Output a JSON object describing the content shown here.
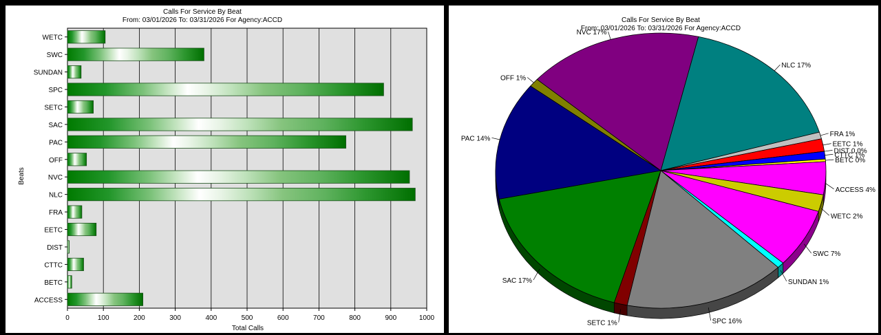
{
  "chart_data": [
    {
      "type": "bar",
      "title": "Calls For Service By Beat",
      "subtitle": "From: 03/01/2026   To: 03/31/2026 For Agency:ACCD",
      "xlabel": "Total Calls",
      "ylabel": "Beats",
      "xlim": [
        0,
        1000
      ],
      "xticks": [
        "0",
        "100",
        "200",
        "300",
        "400",
        "500",
        "600",
        "700",
        "800",
        "900",
        "1000"
      ],
      "grid": true,
      "categories": [
        "WETC",
        "SWC",
        "SUNDAN",
        "SPC",
        "SETC",
        "SAC",
        "PAC",
        "OFF",
        "NVC",
        "NLC",
        "FRA",
        "EETC",
        "DIST",
        "CTTC",
        "BETC",
        "ACCESS"
      ],
      "values": [
        105,
        380,
        38,
        880,
        72,
        960,
        775,
        53,
        952,
        968,
        40,
        80,
        5,
        45,
        12,
        210
      ]
    },
    {
      "type": "pie",
      "title": "Calls For Service By Beat",
      "subtitle": "From: 03/01/2026   To: 03/31/2026 For Agency:ACCD",
      "slices": [
        {
          "label": "NLC 17%",
          "value": 17.0,
          "color": "#008080"
        },
        {
          "label": "FRA 1%",
          "value": 0.8,
          "color": "#c0c0c0"
        },
        {
          "label": "EETC 1%",
          "value": 1.5,
          "color": "#ff0000"
        },
        {
          "label": "DIST 0.0%",
          "value": 0.0,
          "color": "#ffffff"
        },
        {
          "label": "CTTC 1%",
          "value": 0.9,
          "color": "#0000ff"
        },
        {
          "label": "BETC 0%",
          "value": 0.3,
          "color": "#ffff00"
        },
        {
          "label": "ACCESS 4%",
          "value": 3.9,
          "color": "#ff00ff"
        },
        {
          "label": "WETC 2%",
          "value": 2.0,
          "color": "#cccc00"
        },
        {
          "label": "SWC 7%",
          "value": 7.0,
          "color": "#ff00ff"
        },
        {
          "label": "SUNDAN 1%",
          "value": 0.7,
          "color": "#00ffff"
        },
        {
          "label": "SPC 16%",
          "value": 16.0,
          "color": "#808080"
        },
        {
          "label": "SETC 1%",
          "value": 1.3,
          "color": "#800000"
        },
        {
          "label": "SAC 17%",
          "value": 17.3,
          "color": "#008000"
        },
        {
          "label": "PAC 14%",
          "value": 14.0,
          "color": "#000080"
        },
        {
          "label": "OFF 1%",
          "value": 1.0,
          "color": "#808000"
        },
        {
          "label": "NVC 17%",
          "value": 17.3,
          "color": "#800080"
        }
      ]
    }
  ]
}
